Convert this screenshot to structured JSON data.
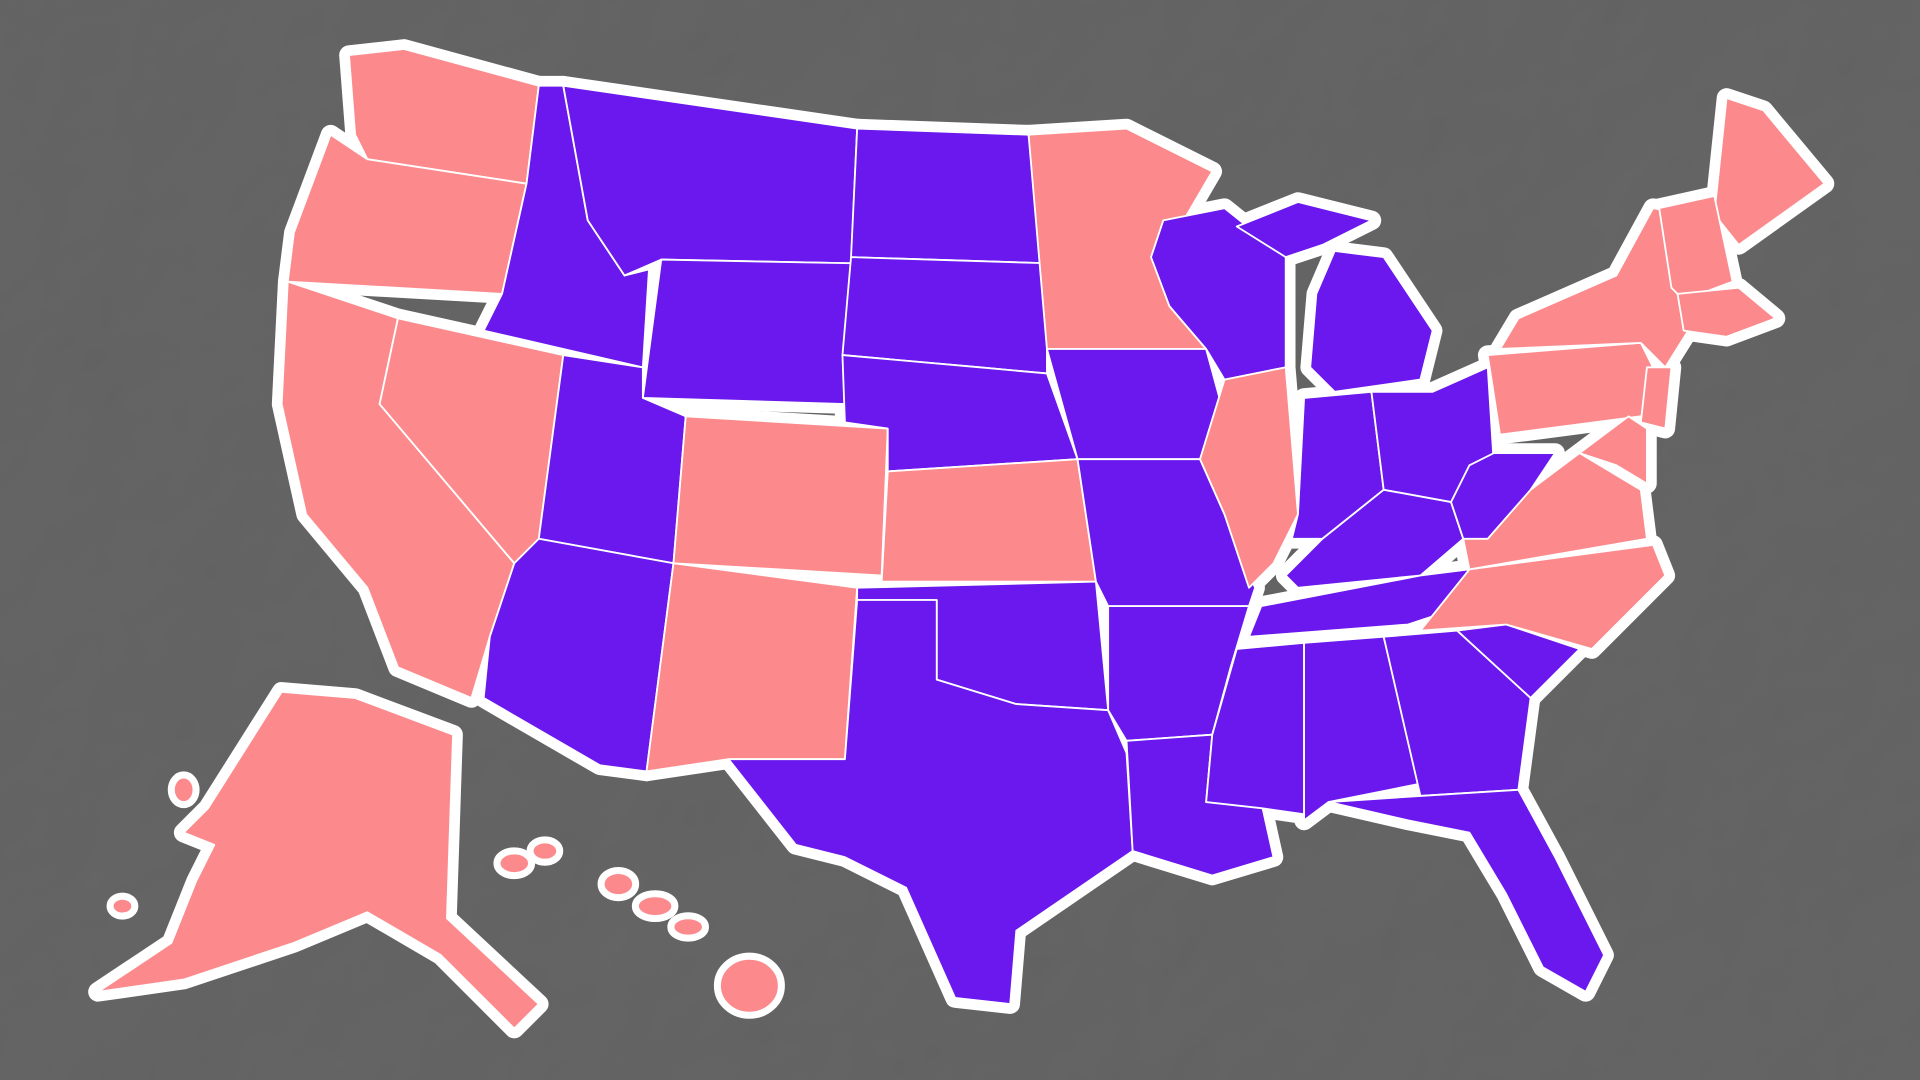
{
  "map": {
    "background": "#676767",
    "outline": "#ffffff",
    "fills": {
      "red": "#fc8a8d",
      "blue": "#6a18ee"
    }
  }
}
